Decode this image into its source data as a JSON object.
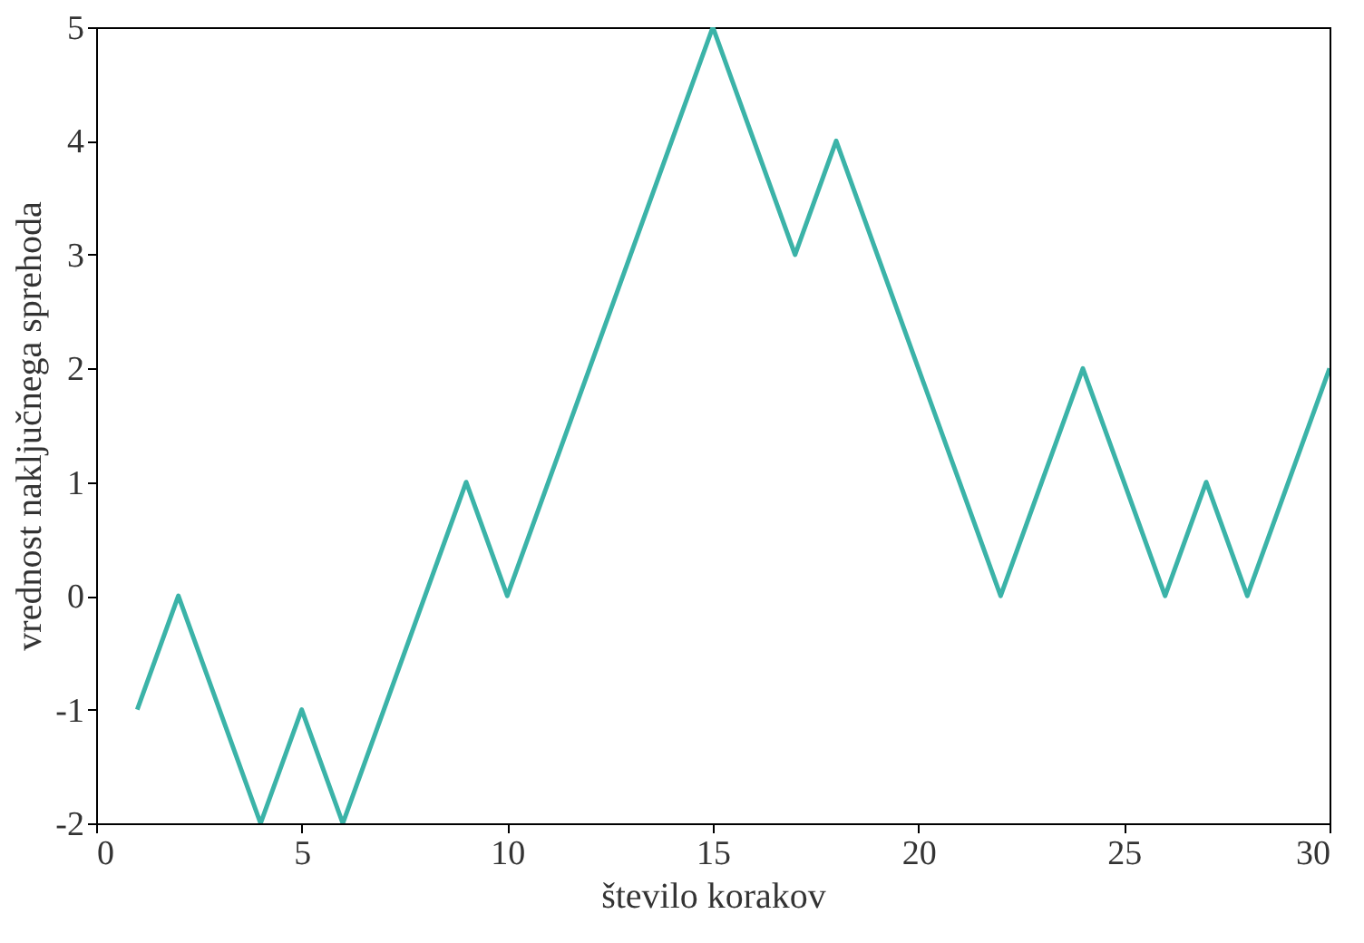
{
  "chart_data": {
    "type": "line",
    "xlabel": "število korakov",
    "ylabel": "vrednost naključnega sprehoda",
    "x": [
      1,
      2,
      3,
      4,
      5,
      6,
      7,
      8,
      9,
      10,
      11,
      12,
      13,
      14,
      15,
      16,
      17,
      18,
      19,
      20,
      21,
      22,
      23,
      24,
      25,
      26,
      27,
      28,
      29,
      30
    ],
    "series": [
      {
        "color": "#3bb3a8",
        "values": [
          -1,
          0,
          -1,
          -2,
          -1,
          -2,
          -1,
          0,
          1,
          0,
          1,
          2,
          3,
          4,
          5,
          4,
          3,
          4,
          3,
          2,
          1,
          0,
          1,
          2,
          1,
          0,
          1,
          0,
          1,
          2
        ]
      }
    ],
    "xlim": [
      0,
      30
    ],
    "xticks": [
      0,
      5,
      10,
      15,
      20,
      25,
      30
    ],
    "ylim": [
      -2,
      5
    ],
    "yticks": [
      -2,
      -1,
      0,
      1,
      2,
      3,
      4,
      5
    ],
    "grid": false,
    "marker": "none",
    "line_style": "solid"
  }
}
